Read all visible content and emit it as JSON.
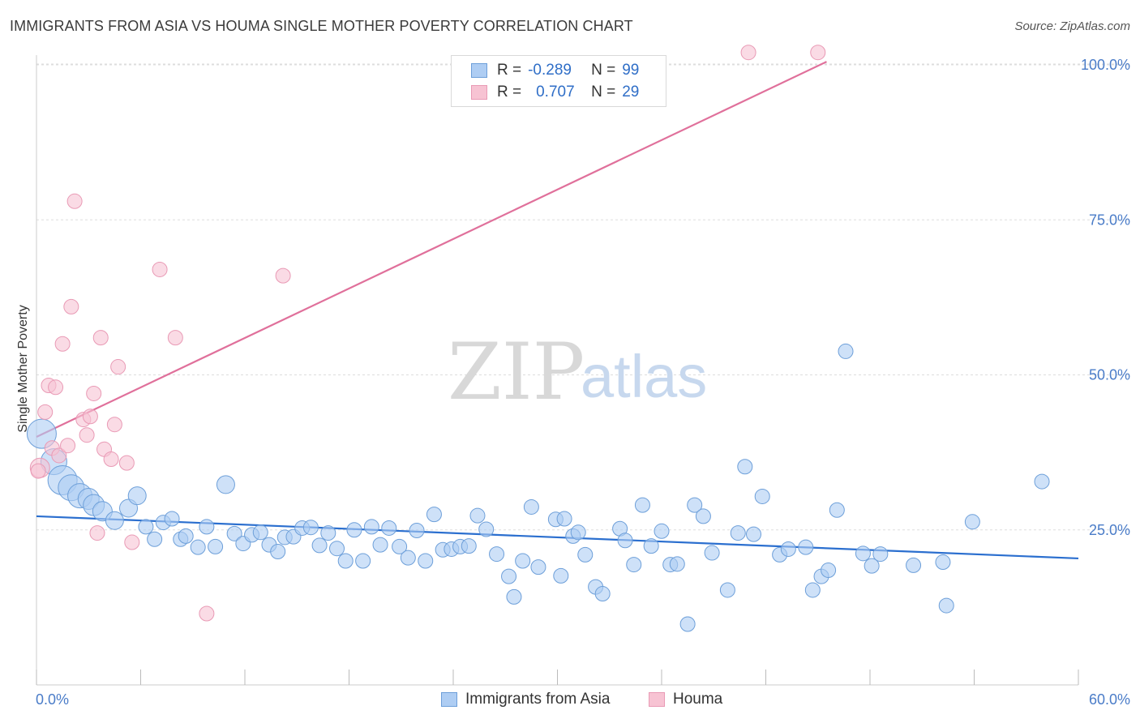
{
  "title": "IMMIGRANTS FROM ASIA VS HOUMA SINGLE MOTHER POVERTY CORRELATION CHART",
  "source": "Source: ZipAtlas.com",
  "watermark": {
    "zip": "ZIP",
    "atlas": "atlas"
  },
  "legend_top": {
    "rows": [
      {
        "r_label": "R =",
        "r_value": "-0.289",
        "n_label": "N =",
        "n_value": "99"
      },
      {
        "r_label": "R =",
        "r_value": "0.707",
        "n_label": "N =",
        "n_value": "29"
      }
    ]
  },
  "legend_bottom": [
    "Immigrants from Asia",
    "Houma"
  ],
  "colors": {
    "blue_fill": "#aecdf3",
    "blue_stroke": "#6d9fd9",
    "blue_line": "#2b6fcf",
    "pink_fill": "#f7c3d3",
    "pink_stroke": "#e99ab5",
    "pink_line": "#e0709b",
    "grid": "#dddddd",
    "tick_text": "#4a7cc8"
  },
  "chart_data": {
    "type": "scatter",
    "title": "IMMIGRANTS FROM ASIA VS HOUMA SINGLE MOTHER POVERTY CORRELATION CHART",
    "xlabel": "",
    "ylabel": "Single Mother Poverty",
    "xlim": [
      0,
      60
    ],
    "ylim": [
      0,
      102
    ],
    "x_tick_labels": [
      "0.0%",
      "60.0%"
    ],
    "y_ticks": [
      25,
      50,
      75,
      100
    ],
    "y_tick_labels": [
      "25.0%",
      "50.0%",
      "75.0%",
      "100.0%"
    ],
    "grid": true,
    "legend_position": "top-center",
    "series": [
      {
        "name": "Immigrants from Asia",
        "r": -0.289,
        "n": 99,
        "trend": {
          "x": [
            0,
            60
          ],
          "y": [
            27.2,
            20.4
          ]
        },
        "points": [
          {
            "x": 0.3,
            "y": 40.5,
            "s": 18
          },
          {
            "x": 1.0,
            "y": 36.0,
            "s": 16
          },
          {
            "x": 1.5,
            "y": 33.0,
            "s": 18
          },
          {
            "x": 2.0,
            "y": 31.8,
            "s": 16
          },
          {
            "x": 2.5,
            "y": 30.5,
            "s": 15
          },
          {
            "x": 3.0,
            "y": 30.0,
            "s": 13
          },
          {
            "x": 3.3,
            "y": 29.0,
            "s": 13
          },
          {
            "x": 3.8,
            "y": 28.0,
            "s": 12
          },
          {
            "x": 4.5,
            "y": 26.5,
            "s": 11
          },
          {
            "x": 5.3,
            "y": 28.5,
            "s": 11
          },
          {
            "x": 5.8,
            "y": 30.5,
            "s": 11
          },
          {
            "x": 6.3,
            "y": 25.5,
            "s": 9
          },
          {
            "x": 6.8,
            "y": 23.5,
            "s": 9
          },
          {
            "x": 7.3,
            "y": 26.2,
            "s": 9
          },
          {
            "x": 7.8,
            "y": 26.8,
            "s": 9
          },
          {
            "x": 8.3,
            "y": 23.5,
            "s": 9
          },
          {
            "x": 8.6,
            "y": 24.0,
            "s": 9
          },
          {
            "x": 9.3,
            "y": 22.2,
            "s": 9
          },
          {
            "x": 9.8,
            "y": 25.5,
            "s": 9
          },
          {
            "x": 10.3,
            "y": 22.3,
            "s": 9
          },
          {
            "x": 10.9,
            "y": 32.3,
            "s": 11
          },
          {
            "x": 11.4,
            "y": 24.4,
            "s": 9
          },
          {
            "x": 11.9,
            "y": 22.8,
            "s": 9
          },
          {
            "x": 12.4,
            "y": 24.2,
            "s": 9
          },
          {
            "x": 12.9,
            "y": 24.6,
            "s": 9
          },
          {
            "x": 13.4,
            "y": 22.6,
            "s": 9
          },
          {
            "x": 13.9,
            "y": 21.5,
            "s": 9
          },
          {
            "x": 14.3,
            "y": 23.8,
            "s": 9
          },
          {
            "x": 14.8,
            "y": 23.9,
            "s": 9
          },
          {
            "x": 15.3,
            "y": 25.3,
            "s": 9
          },
          {
            "x": 15.8,
            "y": 25.4,
            "s": 9
          },
          {
            "x": 16.3,
            "y": 22.5,
            "s": 9
          },
          {
            "x": 16.8,
            "y": 24.5,
            "s": 9
          },
          {
            "x": 17.3,
            "y": 22.0,
            "s": 9
          },
          {
            "x": 17.8,
            "y": 20.0,
            "s": 9
          },
          {
            "x": 18.3,
            "y": 25.0,
            "s": 9
          },
          {
            "x": 18.8,
            "y": 20.0,
            "s": 9
          },
          {
            "x": 19.3,
            "y": 25.5,
            "s": 9
          },
          {
            "x": 19.8,
            "y": 22.6,
            "s": 9
          },
          {
            "x": 20.3,
            "y": 25.3,
            "s": 9
          },
          {
            "x": 20.9,
            "y": 22.3,
            "s": 9
          },
          {
            "x": 21.4,
            "y": 20.5,
            "s": 9
          },
          {
            "x": 21.9,
            "y": 24.9,
            "s": 9
          },
          {
            "x": 22.4,
            "y": 20.0,
            "s": 9
          },
          {
            "x": 22.9,
            "y": 27.5,
            "s": 9
          },
          {
            "x": 23.4,
            "y": 21.8,
            "s": 9
          },
          {
            "x": 23.9,
            "y": 21.9,
            "s": 9
          },
          {
            "x": 24.4,
            "y": 22.3,
            "s": 9
          },
          {
            "x": 24.9,
            "y": 22.4,
            "s": 9
          },
          {
            "x": 25.4,
            "y": 27.3,
            "s": 9
          },
          {
            "x": 25.9,
            "y": 25.1,
            "s": 9
          },
          {
            "x": 26.5,
            "y": 21.1,
            "s": 9
          },
          {
            "x": 27.2,
            "y": 17.5,
            "s": 9
          },
          {
            "x": 27.5,
            "y": 14.2,
            "s": 9
          },
          {
            "x": 28.0,
            "y": 20.0,
            "s": 9
          },
          {
            "x": 28.5,
            "y": 28.7,
            "s": 9
          },
          {
            "x": 28.9,
            "y": 19.0,
            "s": 9
          },
          {
            "x": 29.9,
            "y": 26.7,
            "s": 9
          },
          {
            "x": 30.2,
            "y": 17.6,
            "s": 9
          },
          {
            "x": 30.4,
            "y": 26.8,
            "s": 9
          },
          {
            "x": 30.9,
            "y": 24.0,
            "s": 9
          },
          {
            "x": 31.2,
            "y": 24.6,
            "s": 9
          },
          {
            "x": 31.6,
            "y": 21.0,
            "s": 9
          },
          {
            "x": 32.2,
            "y": 15.8,
            "s": 9
          },
          {
            "x": 32.6,
            "y": 14.7,
            "s": 9
          },
          {
            "x": 33.6,
            "y": 25.2,
            "s": 9
          },
          {
            "x": 33.9,
            "y": 23.3,
            "s": 9
          },
          {
            "x": 34.4,
            "y": 19.4,
            "s": 9
          },
          {
            "x": 34.9,
            "y": 29.0,
            "s": 9
          },
          {
            "x": 35.4,
            "y": 22.4,
            "s": 9
          },
          {
            "x": 36.0,
            "y": 24.8,
            "s": 9
          },
          {
            "x": 36.5,
            "y": 19.4,
            "s": 9
          },
          {
            "x": 36.9,
            "y": 19.5,
            "s": 9
          },
          {
            "x": 37.5,
            "y": 9.8,
            "s": 9
          },
          {
            "x": 37.9,
            "y": 29.0,
            "s": 9
          },
          {
            "x": 38.4,
            "y": 27.2,
            "s": 9
          },
          {
            "x": 38.9,
            "y": 21.3,
            "s": 9
          },
          {
            "x": 39.8,
            "y": 15.3,
            "s": 9
          },
          {
            "x": 40.4,
            "y": 24.5,
            "s": 9
          },
          {
            "x": 40.8,
            "y": 35.2,
            "s": 9
          },
          {
            "x": 41.3,
            "y": 24.3,
            "s": 9
          },
          {
            "x": 41.8,
            "y": 30.4,
            "s": 9
          },
          {
            "x": 42.8,
            "y": 21.0,
            "s": 9
          },
          {
            "x": 43.3,
            "y": 21.9,
            "s": 9
          },
          {
            "x": 44.3,
            "y": 22.2,
            "s": 9
          },
          {
            "x": 44.7,
            "y": 15.3,
            "s": 9
          },
          {
            "x": 45.2,
            "y": 17.5,
            "s": 9
          },
          {
            "x": 45.6,
            "y": 18.5,
            "s": 9
          },
          {
            "x": 46.1,
            "y": 28.2,
            "s": 9
          },
          {
            "x": 46.6,
            "y": 53.8,
            "s": 9
          },
          {
            "x": 47.6,
            "y": 21.2,
            "s": 9
          },
          {
            "x": 48.1,
            "y": 19.2,
            "s": 9
          },
          {
            "x": 48.6,
            "y": 21.1,
            "s": 9
          },
          {
            "x": 50.5,
            "y": 19.3,
            "s": 9
          },
          {
            "x": 52.2,
            "y": 19.8,
            "s": 9
          },
          {
            "x": 52.4,
            "y": 12.8,
            "s": 9
          },
          {
            "x": 53.9,
            "y": 26.3,
            "s": 9
          },
          {
            "x": 57.9,
            "y": 32.8,
            "s": 9
          }
        ]
      },
      {
        "name": "Houma",
        "r": 0.707,
        "n": 29,
        "trend": {
          "x": [
            0,
            45.5
          ],
          "y": [
            40.0,
            100.5
          ]
        },
        "points": [
          {
            "x": 0.2,
            "y": 35.0,
            "s": 12
          },
          {
            "x": 0.5,
            "y": 44.0,
            "s": 9
          },
          {
            "x": 0.7,
            "y": 48.3,
            "s": 9
          },
          {
            "x": 0.9,
            "y": 38.2,
            "s": 9
          },
          {
            "x": 1.1,
            "y": 48.0,
            "s": 9
          },
          {
            "x": 1.3,
            "y": 37.0,
            "s": 9
          },
          {
            "x": 1.5,
            "y": 55.0,
            "s": 9
          },
          {
            "x": 1.8,
            "y": 38.6,
            "s": 9
          },
          {
            "x": 2.0,
            "y": 61.0,
            "s": 9
          },
          {
            "x": 2.2,
            "y": 78.0,
            "s": 9
          },
          {
            "x": 2.7,
            "y": 42.8,
            "s": 9
          },
          {
            "x": 2.9,
            "y": 40.3,
            "s": 9
          },
          {
            "x": 3.1,
            "y": 43.3,
            "s": 9
          },
          {
            "x": 3.3,
            "y": 47.0,
            "s": 9
          },
          {
            "x": 3.5,
            "y": 24.5,
            "s": 9
          },
          {
            "x": 3.7,
            "y": 56.0,
            "s": 9
          },
          {
            "x": 3.9,
            "y": 38.0,
            "s": 9
          },
          {
            "x": 4.3,
            "y": 36.4,
            "s": 9
          },
          {
            "x": 4.5,
            "y": 42.0,
            "s": 9
          },
          {
            "x": 4.7,
            "y": 51.3,
            "s": 9
          },
          {
            "x": 5.2,
            "y": 35.8,
            "s": 9
          },
          {
            "x": 5.5,
            "y": 23.0,
            "s": 9
          },
          {
            "x": 7.1,
            "y": 67.0,
            "s": 9
          },
          {
            "x": 8.0,
            "y": 56.0,
            "s": 9
          },
          {
            "x": 9.8,
            "y": 11.5,
            "s": 9
          },
          {
            "x": 14.2,
            "y": 66.0,
            "s": 9
          },
          {
            "x": 41.0,
            "y": 102.0,
            "s": 9
          },
          {
            "x": 45.0,
            "y": 102.0,
            "s": 9
          },
          {
            "x": 0.1,
            "y": 34.5,
            "s": 9
          }
        ]
      }
    ]
  }
}
